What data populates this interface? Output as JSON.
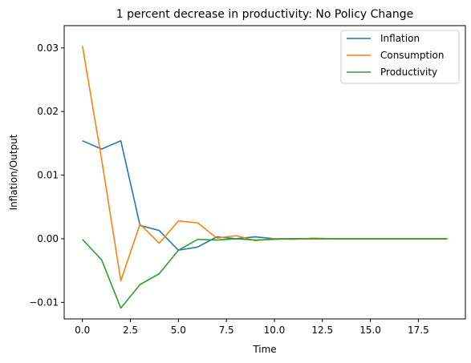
{
  "chart_data": {
    "type": "line",
    "title": "1 percent decrease in productivity: No Policy Change",
    "xlabel": "Time",
    "ylabel": "Inflation/Output",
    "xlim": [
      -0.95,
      19.95
    ],
    "ylim": [
      -0.0126,
      0.0335
    ],
    "xticks": [
      0.0,
      2.5,
      5.0,
      7.5,
      10.0,
      12.5,
      15.0,
      17.5
    ],
    "xtick_labels": [
      "0.0",
      "2.5",
      "5.0",
      "7.5",
      "10.0",
      "12.5",
      "15.0",
      "17.5"
    ],
    "yticks": [
      -0.01,
      0.0,
      0.01,
      0.02,
      0.03
    ],
    "ytick_labels": [
      "−0.01",
      "0.00",
      "0.01",
      "0.02",
      "0.03"
    ],
    "grid": false,
    "legend_position": "top-right",
    "x": [
      0,
      1,
      2,
      3,
      4,
      5,
      6,
      7,
      8,
      9,
      10,
      11,
      12,
      13,
      14,
      15,
      16,
      17,
      18,
      19
    ],
    "series": [
      {
        "name": "Inflation",
        "color": "#1f77b4",
        "values": [
          0.0154,
          0.0141,
          0.0154,
          0.0021,
          0.0013,
          -0.0018,
          -0.0013,
          0.0003,
          0.0,
          0.0003,
          0.0,
          0.0,
          0.0,
          0.0,
          0.0,
          0.0,
          0.0,
          0.0,
          0.0,
          0.0
        ]
      },
      {
        "name": "Consumption",
        "color": "#ff7f0e",
        "values": [
          0.0303,
          0.0125,
          -0.0066,
          0.0023,
          -0.0007,
          0.0028,
          0.0025,
          0.0001,
          0.0005,
          -0.0003,
          0.0,
          -0.0001,
          0.0001,
          0.0,
          0.0,
          0.0,
          0.0,
          0.0,
          0.0,
          0.0
        ]
      },
      {
        "name": "Productivity",
        "color": "#2ca02c",
        "values": [
          -0.0001,
          -0.0033,
          -0.0109,
          -0.0072,
          -0.0055,
          -0.0018,
          -0.0001,
          -0.0002,
          0.0,
          -0.0002,
          -0.0001,
          0.0,
          0.0,
          0.0,
          0.0,
          0.0,
          0.0,
          0.0,
          0.0,
          0.0
        ]
      }
    ]
  }
}
